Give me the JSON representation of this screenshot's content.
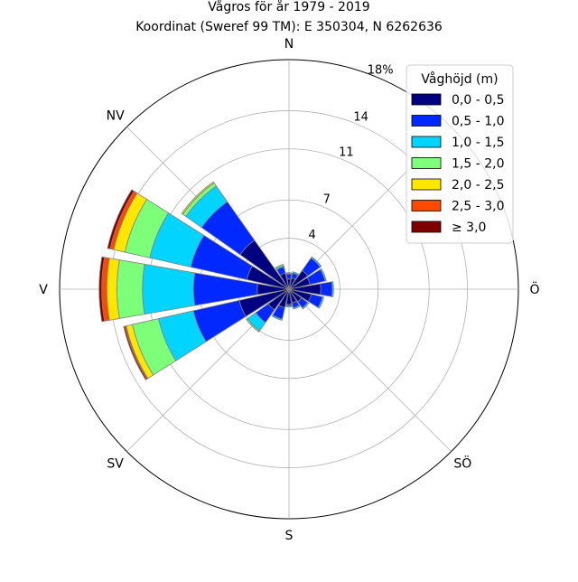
{
  "chart_data": {
    "type": "windrose",
    "title_line1": "Vågros för år 1979 - 2019",
    "title_line2": "Koordinat (Sweref 99 TM): E 350304, N 6262636",
    "directions": [
      "N",
      "NV",
      "V",
      "SV",
      "S",
      "SÖ",
      "Ö"
    ],
    "ring_labels": [
      "4",
      "7",
      "11",
      "14",
      "18%"
    ],
    "ring_values": [
      4,
      7,
      11,
      14,
      18
    ],
    "r_max": 18,
    "legend_title": "Våghöjd (m)",
    "bins": [
      {
        "label": "0,0 - 0,5",
        "color": "#000080"
      },
      {
        "label": "0,5 - 1,0",
        "color": "#0028ff"
      },
      {
        "label": "1,0 - 1,5",
        "color": "#00d4ff"
      },
      {
        "label": "1,5 - 2,0",
        "color": "#7dff7a"
      },
      {
        "label": "2,0 - 2,5",
        "color": "#ffe600"
      },
      {
        "label": "2,5 - 3,0",
        "color": "#ff4800"
      },
      {
        "label": "≥ 3,0",
        "color": "#800000"
      }
    ],
    "sector_directions_deg": [
      0,
      22.5,
      45,
      67.5,
      90,
      112.5,
      135,
      157.5,
      180,
      202.5,
      225,
      247.5,
      270,
      292.5,
      315,
      337.5
    ],
    "sectors": [
      [
        0.8,
        0.4,
        0.1,
        0,
        0,
        0,
        0
      ],
      [
        0.9,
        0.4,
        0.1,
        0,
        0,
        0,
        0
      ],
      [
        1.8,
        1.2,
        0.1,
        0,
        0,
        0,
        0
      ],
      [
        1.7,
        1.2,
        0.1,
        0,
        0,
        0,
        0
      ],
      [
        2.5,
        0.9,
        0.1,
        0,
        0,
        0,
        0
      ],
      [
        1.8,
        0.9,
        0.1,
        0,
        0,
        0,
        0
      ],
      [
        1.2,
        0.6,
        0.1,
        0,
        0,
        0,
        0
      ],
      [
        1.1,
        0.4,
        0.1,
        0,
        0,
        0,
        0
      ],
      [
        1.2,
        0.1,
        0.1,
        0,
        0,
        0,
        0
      ],
      [
        1.5,
        0.9,
        0.1,
        0,
        0,
        0,
        0
      ],
      [
        2.0,
        1.2,
        0.8,
        0.1,
        0,
        0,
        0
      ],
      [
        4.0,
        3.7,
        2.8,
        2.1,
        0.5,
        0.1,
        0.1
      ],
      [
        2.5,
        5.0,
        4.0,
        2.0,
        0.8,
        0.4,
        0.2
      ],
      [
        3.4,
        4.5,
        3.3,
        2.0,
        0.9,
        0.3,
        0.2
      ],
      [
        4.7,
        3.7,
        1.5,
        0.3,
        0.1,
        0,
        0
      ],
      [
        1.3,
        0.5,
        0.1,
        0.1,
        0,
        0,
        0
      ]
    ]
  }
}
